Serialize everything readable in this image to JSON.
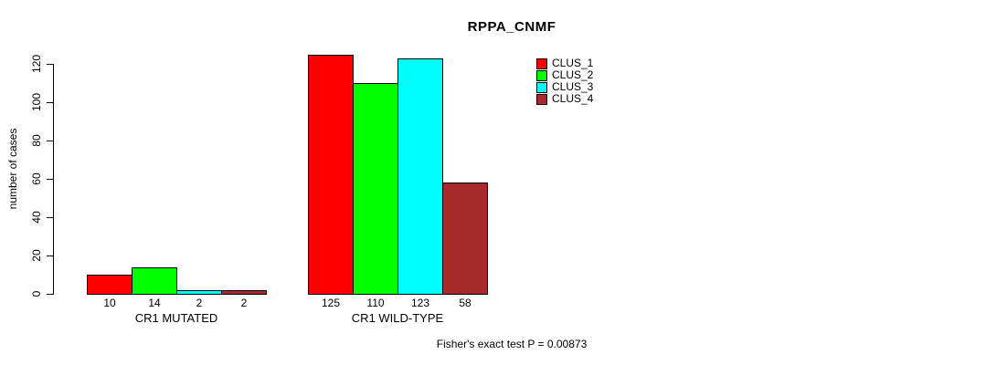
{
  "title": "RPPA_CNMF",
  "chart_data": {
    "type": "bar",
    "title": "RPPA_CNMF",
    "xlabel": "",
    "ylabel": "number of cases",
    "ylim": [
      0,
      130
    ],
    "yticks": [
      0,
      20,
      40,
      60,
      80,
      100,
      120
    ],
    "categories": [
      "CR1 MUTATED",
      "CR1 WILD-TYPE"
    ],
    "series": [
      {
        "name": "CLUS_1",
        "color": "#FF0000",
        "values": [
          10,
          125
        ]
      },
      {
        "name": "CLUS_2",
        "color": "#00FF00",
        "values": [
          14,
          110
        ]
      },
      {
        "name": "CLUS_3",
        "color": "#00FFFF",
        "values": [
          2,
          123
        ]
      },
      {
        "name": "CLUS_4",
        "color": "#A52A2A",
        "values": [
          2,
          58
        ]
      }
    ],
    "bar_value_labels_shown": true,
    "legend_position": "top-right",
    "legend_entries": [
      "CLUS_1",
      "CLUS_2",
      "CLUS_3",
      "CLUS_4"
    ],
    "grid": false,
    "background": "#FFFFFF",
    "annotation": "Fisher's exact test P = 0.00873"
  }
}
